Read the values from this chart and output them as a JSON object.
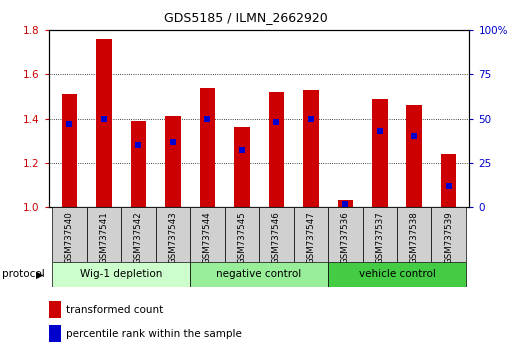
{
  "title": "GDS5185 / ILMN_2662920",
  "samples": [
    "GSM737540",
    "GSM737541",
    "GSM737542",
    "GSM737543",
    "GSM737544",
    "GSM737545",
    "GSM737546",
    "GSM737547",
    "GSM737536",
    "GSM737537",
    "GSM737538",
    "GSM737539"
  ],
  "transformed_counts": [
    1.51,
    1.76,
    1.39,
    1.41,
    1.54,
    1.36,
    1.52,
    1.53,
    1.03,
    1.49,
    1.46,
    1.24
  ],
  "percentile_ranks": [
    47,
    50,
    35,
    37,
    50,
    32,
    48,
    50,
    2,
    43,
    40,
    12
  ],
  "ylim_left": [
    1.0,
    1.8
  ],
  "ylim_right": [
    0,
    100
  ],
  "yticks_left": [
    1.0,
    1.2,
    1.4,
    1.6,
    1.8
  ],
  "yticks_right": [
    0,
    25,
    50,
    75,
    100
  ],
  "groups": [
    {
      "label": "Wig-1 depletion",
      "indices": [
        0,
        1,
        2,
        3
      ],
      "color": "#ccffcc"
    },
    {
      "label": "negative control",
      "indices": [
        4,
        5,
        6,
        7
      ],
      "color": "#99ee99"
    },
    {
      "label": "vehicle control",
      "indices": [
        8,
        9,
        10,
        11
      ],
      "color": "#44cc44"
    }
  ],
  "bar_color": "#cc0000",
  "percentile_color": "#0000cc",
  "bar_width": 0.45,
  "tick_label_color_left": "#cc0000",
  "tick_label_color_right": "#0000cc",
  "grid_linestyle": ":",
  "grid_color": "black",
  "sample_box_color": "#d0d0d0",
  "title_fontsize": 9
}
